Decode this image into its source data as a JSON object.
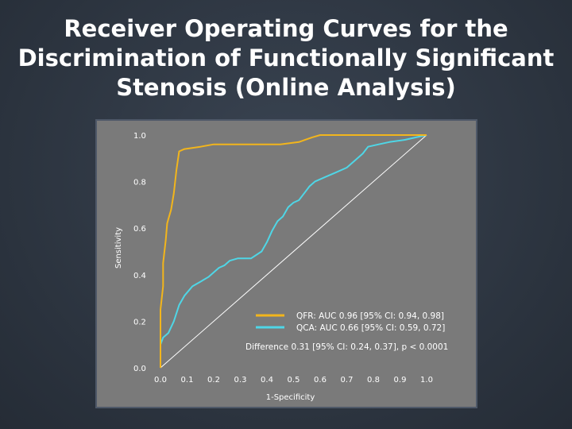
{
  "title_lines": [
    "Receiver Operating Curves for the",
    "Discrimination of Functionally Significant",
    "Stenosis (Online Analysis)"
  ],
  "annotation": "Difference 0.31 [95% CI: 0.24, 0.37], p < 0.0001",
  "colors": {
    "qfr": "#f2b51c",
    "qca": "#4fd6e6",
    "diagonal": "#ffffff",
    "panel": "#7a7a7a"
  },
  "chart_data": {
    "type": "line",
    "xlabel": "1-Specificity",
    "ylabel": "Sensitivity",
    "xlim": [
      0,
      1
    ],
    "ylim": [
      0,
      1
    ],
    "x_ticks": [
      "0.0",
      "0.1",
      "0.2",
      "0.3",
      "0.4",
      "0.5",
      "0.6",
      "0.7",
      "0.8",
      "0.9",
      "1.0"
    ],
    "y_ticks": [
      "0.0",
      "0.2",
      "0.4",
      "0.6",
      "0.8",
      "1.0"
    ],
    "legend_position": "lower-right",
    "reference_line": [
      [
        0,
        0
      ],
      [
        1,
        1
      ]
    ],
    "series": [
      {
        "name": "QFR: AUC 0.96 [95% CI: 0.94, 0.98]",
        "color": "#f2b51c",
        "points": [
          [
            0,
            0
          ],
          [
            0,
            0.25
          ],
          [
            0.01,
            0.35
          ],
          [
            0.01,
            0.45
          ],
          [
            0.02,
            0.55
          ],
          [
            0.025,
            0.62
          ],
          [
            0.03,
            0.64
          ],
          [
            0.04,
            0.68
          ],
          [
            0.05,
            0.75
          ],
          [
            0.06,
            0.85
          ],
          [
            0.07,
            0.93
          ],
          [
            0.09,
            0.94
          ],
          [
            0.15,
            0.95
          ],
          [
            0.2,
            0.96
          ],
          [
            0.45,
            0.96
          ],
          [
            0.52,
            0.97
          ],
          [
            0.57,
            0.99
          ],
          [
            0.6,
            1.0
          ],
          [
            1.0,
            1.0
          ]
        ]
      },
      {
        "name": "QCA: AUC 0.66 [95% CI: 0.59, 0.72]",
        "color": "#4fd6e6",
        "points": [
          [
            0,
            0
          ],
          [
            0,
            0.1
          ],
          [
            0.01,
            0.13
          ],
          [
            0.03,
            0.15
          ],
          [
            0.05,
            0.2
          ],
          [
            0.07,
            0.27
          ],
          [
            0.09,
            0.31
          ],
          [
            0.12,
            0.35
          ],
          [
            0.15,
            0.37
          ],
          [
            0.18,
            0.39
          ],
          [
            0.2,
            0.41
          ],
          [
            0.22,
            0.43
          ],
          [
            0.24,
            0.44
          ],
          [
            0.26,
            0.46
          ],
          [
            0.29,
            0.47
          ],
          [
            0.34,
            0.47
          ],
          [
            0.38,
            0.5
          ],
          [
            0.4,
            0.54
          ],
          [
            0.42,
            0.59
          ],
          [
            0.44,
            0.63
          ],
          [
            0.46,
            0.65
          ],
          [
            0.48,
            0.69
          ],
          [
            0.5,
            0.71
          ],
          [
            0.52,
            0.72
          ],
          [
            0.54,
            0.75
          ],
          [
            0.56,
            0.78
          ],
          [
            0.58,
            0.8
          ],
          [
            0.62,
            0.82
          ],
          [
            0.66,
            0.84
          ],
          [
            0.7,
            0.86
          ],
          [
            0.73,
            0.89
          ],
          [
            0.76,
            0.92
          ],
          [
            0.78,
            0.95
          ],
          [
            0.82,
            0.96
          ],
          [
            0.86,
            0.97
          ],
          [
            0.92,
            0.98
          ],
          [
            0.96,
            0.99
          ],
          [
            1.0,
            1.0
          ]
        ]
      }
    ]
  }
}
